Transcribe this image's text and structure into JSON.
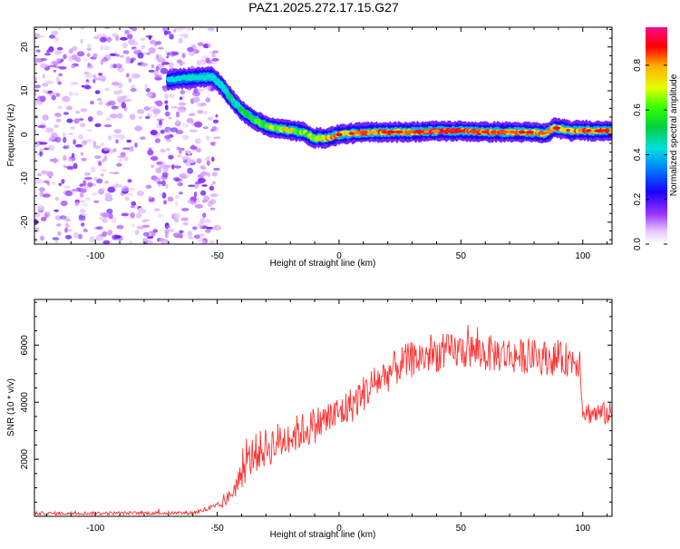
{
  "title": "PAZ1.2025.272.17.15.G27",
  "chart_data": [
    {
      "type": "heatmap",
      "xlabel": "Height of straight line (km)",
      "ylabel": "Frequency (Hz)",
      "xlim": [
        -125,
        112
      ],
      "ylim": [
        -25,
        24.5
      ],
      "xticks": [
        -100,
        -50,
        0,
        50,
        100
      ],
      "xtick_labels": [
        "-100",
        "-50",
        "0",
        "50",
        "100"
      ],
      "yticks": [
        -20,
        -10,
        0,
        10,
        20
      ],
      "ytick_labels": [
        "-20",
        "-10",
        "0",
        "10",
        "20"
      ],
      "colorbar": {
        "label": "Normalized spectral amplitude",
        "range": [
          0,
          0.97
        ],
        "ticks": [
          0.0,
          0.2,
          0.4,
          0.6,
          0.8
        ],
        "tick_labels": [
          "0.0",
          "0.2",
          "0.4",
          "0.6",
          "0.8"
        ]
      },
      "signal_track": {
        "x": [
          -70,
          -60,
          -52,
          -48,
          -44,
          -40,
          -35,
          -30,
          -25,
          -20,
          -15,
          -10,
          -5,
          0,
          10,
          20,
          30,
          40,
          50,
          60,
          70,
          80,
          85,
          88,
          90,
          95,
          100,
          105,
          112
        ],
        "freq": [
          12.5,
          13,
          13.2,
          11,
          8,
          5.5,
          3.5,
          2,
          1.3,
          1,
          0.6,
          -0.8,
          -0.8,
          0,
          0.5,
          0.6,
          0.6,
          0.8,
          0.8,
          0.6,
          0.6,
          0.5,
          0.2,
          1.5,
          1.5,
          0.8,
          1,
          0.8,
          1
        ],
        "amplitude": [
          0.3,
          0.35,
          0.4,
          0.45,
          0.55,
          0.6,
          0.65,
          0.7,
          0.75,
          0.8,
          0.7,
          0.75,
          0.85,
          0.85,
          0.9,
          0.9,
          0.85,
          0.95,
          0.95,
          0.9,
          0.85,
          0.85,
          0.85,
          0.9,
          0.9,
          0.85,
          0.9,
          0.85,
          0.9
        ]
      },
      "noise_region": {
        "x_range": [
          -125,
          -50
        ],
        "amplitude": 0.1
      }
    },
    {
      "type": "line",
      "xlabel": "Height of straight line (km)",
      "ylabel": "SNR (10 * v/v)",
      "xlim": [
        -125,
        112
      ],
      "ylim": [
        0,
        7600
      ],
      "xticks": [
        -100,
        -50,
        0,
        50,
        100
      ],
      "xtick_labels": [
        "-100",
        "-50",
        "0",
        "50",
        "100"
      ],
      "yticks": [
        2000,
        4000,
        6000
      ],
      "ytick_labels": [
        "2000",
        "4000",
        "6000"
      ],
      "series": [
        {
          "name": "SNR",
          "color": "#ff3333",
          "x": [
            -125,
            -60,
            -52,
            -48,
            -45,
            -42,
            -38,
            -35,
            -30,
            -25,
            -20,
            -15,
            -10,
            -5,
            0,
            5,
            10,
            15,
            20,
            25,
            30,
            35,
            40,
            45,
            50,
            55,
            60,
            65,
            70,
            75,
            80,
            85,
            90,
            95,
            99,
            100,
            101,
            105,
            112
          ],
          "y": [
            100,
            120,
            300,
            400,
            700,
            1100,
            1800,
            2200,
            2400,
            2600,
            2800,
            3000,
            3200,
            3400,
            3600,
            3900,
            4300,
            4700,
            5000,
            5300,
            5500,
            5600,
            5700,
            5750,
            5800,
            5800,
            5700,
            5700,
            5650,
            5600,
            5600,
            5550,
            5500,
            5500,
            5450,
            3700,
            3650,
            3600,
            3600
          ],
          "noise": [
            60,
            60,
            120,
            150,
            250,
            400,
            600,
            700,
            700,
            700,
            650,
            650,
            650,
            650,
            650,
            650,
            650,
            650,
            650,
            650,
            650,
            650,
            650,
            650,
            650,
            650,
            650,
            650,
            650,
            600,
            600,
            600,
            600,
            600,
            600,
            400,
            400,
            400,
            400
          ]
        }
      ]
    }
  ]
}
